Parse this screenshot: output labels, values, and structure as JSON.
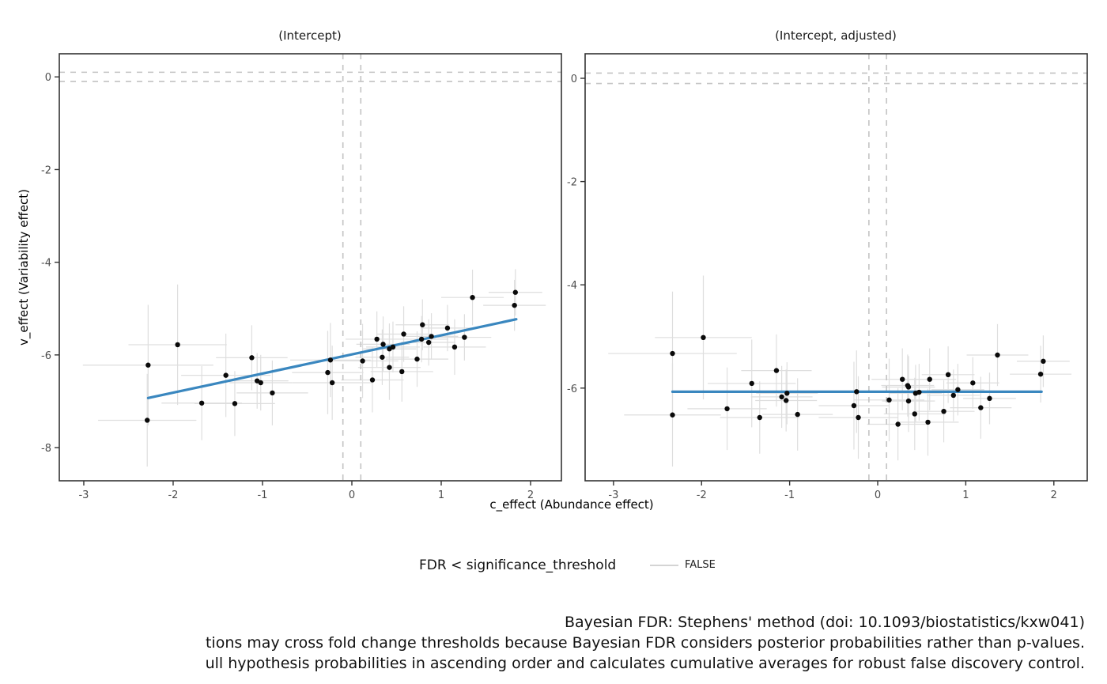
{
  "figure": {
    "background": "#ffffff",
    "x_axis_title": "c_effect (Abundance effect)",
    "y_axis_title": "v_effect (Variability effect)"
  },
  "colors": {
    "trend_blue": "#3a87bf",
    "point_black": "#0a0a0a",
    "error_bar_gray": "#dedede",
    "threshold_dash_gray": "#c3c3c3",
    "axis_line": "#333333",
    "tick_label_gray": "#4d4d4d"
  },
  "legend": {
    "title": "FDR < significance_threshold",
    "entries": [
      {
        "label": "FALSE",
        "swatch": "gray-line"
      }
    ]
  },
  "caption": {
    "line1": "Bayesian FDR: Stephens' method (doi: 10.1093/biostatistics/kxw041)",
    "line2": "tions may cross fold change thresholds because Bayesian FDR considers posterior probabilities rather than p-values.",
    "line3": "ull hypothesis probabilities in ascending order and calculates cumulative averages for robust false discovery control."
  },
  "chart_data": [
    {
      "type": "scatter",
      "title": "(Intercept)",
      "xlabel": "c_effect (Abundance effect)",
      "ylabel": "v_effect (Variability effect)",
      "xlim": [
        -3.274,
        2.345
      ],
      "ylim": [
        -8.716,
        0.499
      ],
      "x_ticks": [
        -3,
        -2,
        -1,
        0,
        1,
        2
      ],
      "y_ticks": [
        0,
        -2,
        -4,
        -6,
        -8
      ],
      "grid": false,
      "threshold_lines": {
        "vertical_x": [
          -0.1,
          0.1
        ],
        "horizontal_y": [
          -0.1,
          0.1
        ],
        "style": "dashed"
      },
      "trend_line": {
        "x": [
          -2.28,
          1.84
        ],
        "y": [
          -6.93,
          -5.23
        ]
      },
      "points": [
        {
          "x": -2.29,
          "y": -7.41,
          "xerr": 0.55,
          "yerr": 1.0
        },
        {
          "x": -2.28,
          "y": -6.22,
          "xerr": 0.73,
          "yerr": 1.3
        },
        {
          "x": -1.95,
          "y": -5.78,
          "xerr": 0.55,
          "yerr": 1.3
        },
        {
          "x": -1.68,
          "y": -7.04,
          "xerr": 0.45,
          "yerr": 0.8
        },
        {
          "x": -1.41,
          "y": -6.44,
          "xerr": 0.5,
          "yerr": 0.9
        },
        {
          "x": -1.31,
          "y": -7.05,
          "xerr": 0.45,
          "yerr": 0.7
        },
        {
          "x": -1.12,
          "y": -6.06,
          "xerr": 0.4,
          "yerr": 0.7
        },
        {
          "x": -1.06,
          "y": -6.56,
          "xerr": 0.35,
          "yerr": 0.6
        },
        {
          "x": -1.02,
          "y": -6.6,
          "xerr": 0.35,
          "yerr": 0.6
        },
        {
          "x": -0.89,
          "y": -6.82,
          "xerr": 0.4,
          "yerr": 0.7
        },
        {
          "x": -0.27,
          "y": -6.38,
          "xerr": 0.4,
          "yerr": 0.9
        },
        {
          "x": -0.24,
          "y": -6.11,
          "xerr": 0.45,
          "yerr": 0.8
        },
        {
          "x": -0.22,
          "y": -6.6,
          "xerr": 0.45,
          "yerr": 0.8
        },
        {
          "x": 0.12,
          "y": -6.13,
          "xerr": 0.4,
          "yerr": 0.8
        },
        {
          "x": 0.23,
          "y": -6.54,
          "xerr": 0.35,
          "yerr": 0.7
        },
        {
          "x": 0.28,
          "y": -5.66,
          "xerr": 0.35,
          "yerr": 0.6
        },
        {
          "x": 0.34,
          "y": -6.05,
          "xerr": 0.3,
          "yerr": 0.6
        },
        {
          "x": 0.35,
          "y": -5.77,
          "xerr": 0.3,
          "yerr": 0.6
        },
        {
          "x": 0.42,
          "y": -5.87,
          "xerr": 0.3,
          "yerr": 0.55
        },
        {
          "x": 0.42,
          "y": -6.27,
          "xerr": 0.35,
          "yerr": 0.7
        },
        {
          "x": 0.46,
          "y": -5.83,
          "xerr": 0.3,
          "yerr": 0.55
        },
        {
          "x": 0.56,
          "y": -6.36,
          "xerr": 0.35,
          "yerr": 0.65
        },
        {
          "x": 0.58,
          "y": -5.55,
          "xerr": 0.3,
          "yerr": 0.6
        },
        {
          "x": 0.73,
          "y": -6.09,
          "xerr": 0.35,
          "yerr": 0.6
        },
        {
          "x": 0.78,
          "y": -5.66,
          "xerr": 0.3,
          "yerr": 0.5
        },
        {
          "x": 0.79,
          "y": -5.35,
          "xerr": 0.3,
          "yerr": 0.55
        },
        {
          "x": 0.86,
          "y": -5.73,
          "xerr": 0.3,
          "yerr": 0.5
        },
        {
          "x": 0.89,
          "y": -5.6,
          "xerr": 0.3,
          "yerr": 0.5
        },
        {
          "x": 1.07,
          "y": -5.42,
          "xerr": 0.3,
          "yerr": 0.5
        },
        {
          "x": 1.15,
          "y": -5.83,
          "xerr": 0.35,
          "yerr": 0.6
        },
        {
          "x": 1.26,
          "y": -5.62,
          "xerr": 0.3,
          "yerr": 0.5
        },
        {
          "x": 1.35,
          "y": -4.76,
          "xerr": 0.35,
          "yerr": 0.6
        },
        {
          "x": 1.82,
          "y": -4.93,
          "xerr": 0.35,
          "yerr": 0.55
        },
        {
          "x": 1.83,
          "y": -4.65,
          "xerr": 0.3,
          "yerr": 0.5
        }
      ]
    },
    {
      "type": "scatter",
      "title": "(Intercept, adjusted)",
      "xlabel": "c_effect (Abundance effect)",
      "ylabel": "v_effect (Variability effect)",
      "xlim": [
        -3.322,
        2.379
      ],
      "ylim": [
        -7.795,
        0.475
      ],
      "x_ticks": [
        -3,
        -2,
        -1,
        0,
        1,
        2
      ],
      "y_ticks": [
        0,
        -2,
        -4,
        -6
      ],
      "grid": false,
      "threshold_lines": {
        "vertical_x": [
          -0.1,
          0.1
        ],
        "horizontal_y": [
          -0.1,
          0.1
        ],
        "style": "dashed"
      },
      "trend_line": {
        "x": [
          -2.33,
          1.86
        ],
        "y": [
          -6.07,
          -6.07
        ]
      },
      "points": [
        {
          "x": -2.33,
          "y": -5.33,
          "xerr": 0.73,
          "yerr": 1.2
        },
        {
          "x": -2.33,
          "y": -6.52,
          "xerr": 0.55,
          "yerr": 1.0
        },
        {
          "x": -1.98,
          "y": -5.02,
          "xerr": 0.55,
          "yerr": 1.2
        },
        {
          "x": -1.71,
          "y": -6.4,
          "xerr": 0.45,
          "yerr": 0.8
        },
        {
          "x": -1.43,
          "y": -5.91,
          "xerr": 0.5,
          "yerr": 0.85
        },
        {
          "x": -1.34,
          "y": -6.57,
          "xerr": 0.45,
          "yerr": 0.7
        },
        {
          "x": -1.15,
          "y": -5.66,
          "xerr": 0.4,
          "yerr": 0.7
        },
        {
          "x": -1.09,
          "y": -6.17,
          "xerr": 0.35,
          "yerr": 0.6
        },
        {
          "x": -1.04,
          "y": -6.24,
          "xerr": 0.35,
          "yerr": 0.6
        },
        {
          "x": -1.03,
          "y": -6.1,
          "xerr": 0.35,
          "yerr": 0.6
        },
        {
          "x": -0.91,
          "y": -6.51,
          "xerr": 0.4,
          "yerr": 0.7
        },
        {
          "x": -0.27,
          "y": -6.34,
          "xerr": 0.4,
          "yerr": 0.85
        },
        {
          "x": -0.24,
          "y": -6.07,
          "xerr": 0.45,
          "yerr": 0.8
        },
        {
          "x": -0.22,
          "y": -6.57,
          "xerr": 0.45,
          "yerr": 0.8
        },
        {
          "x": 0.13,
          "y": -6.23,
          "xerr": 0.4,
          "yerr": 0.8
        },
        {
          "x": 0.23,
          "y": -6.7,
          "xerr": 0.35,
          "yerr": 0.7
        },
        {
          "x": 0.28,
          "y": -5.83,
          "xerr": 0.35,
          "yerr": 0.6
        },
        {
          "x": 0.34,
          "y": -5.95,
          "xerr": 0.3,
          "yerr": 0.6
        },
        {
          "x": 0.35,
          "y": -5.98,
          "xerr": 0.3,
          "yerr": 0.6
        },
        {
          "x": 0.35,
          "y": -6.25,
          "xerr": 0.3,
          "yerr": 0.6
        },
        {
          "x": 0.42,
          "y": -6.5,
          "xerr": 0.35,
          "yerr": 0.7
        },
        {
          "x": 0.43,
          "y": -6.1,
          "xerr": 0.3,
          "yerr": 0.55
        },
        {
          "x": 0.47,
          "y": -6.08,
          "xerr": 0.3,
          "yerr": 0.55
        },
        {
          "x": 0.57,
          "y": -6.66,
          "xerr": 0.35,
          "yerr": 0.65
        },
        {
          "x": 0.59,
          "y": -5.83,
          "xerr": 0.3,
          "yerr": 0.6
        },
        {
          "x": 0.75,
          "y": -6.45,
          "xerr": 0.35,
          "yerr": 0.6
        },
        {
          "x": 0.8,
          "y": -5.74,
          "xerr": 0.3,
          "yerr": 0.55
        },
        {
          "x": 0.86,
          "y": -6.14,
          "xerr": 0.3,
          "yerr": 0.5
        },
        {
          "x": 0.91,
          "y": -6.03,
          "xerr": 0.3,
          "yerr": 0.5
        },
        {
          "x": 1.08,
          "y": -5.9,
          "xerr": 0.3,
          "yerr": 0.5
        },
        {
          "x": 1.17,
          "y": -6.38,
          "xerr": 0.35,
          "yerr": 0.6
        },
        {
          "x": 1.27,
          "y": -6.2,
          "xerr": 0.3,
          "yerr": 0.5
        },
        {
          "x": 1.36,
          "y": -5.36,
          "xerr": 0.35,
          "yerr": 0.6
        },
        {
          "x": 1.85,
          "y": -5.73,
          "xerr": 0.35,
          "yerr": 0.55
        },
        {
          "x": 1.88,
          "y": -5.48,
          "xerr": 0.3,
          "yerr": 0.5
        }
      ]
    }
  ]
}
